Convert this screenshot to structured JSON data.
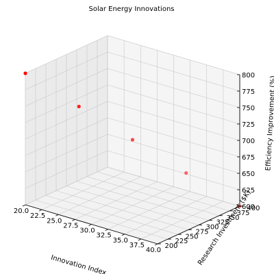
{
  "chart_data": {
    "type": "scatter",
    "title": "Solar Energy Innovations",
    "xlabel": "Innovation Index",
    "ylabel": "Research Investment ($K)",
    "zlabel": "Efficiency Improvement (%)",
    "x": [
      20,
      25,
      30,
      35,
      40
    ],
    "y": [
      200,
      250,
      300,
      350,
      400
    ],
    "z": [
      800,
      750,
      700,
      650,
      600
    ],
    "xlim": [
      20,
      40
    ],
    "ylim": [
      200,
      400
    ],
    "zlim": [
      600,
      800
    ],
    "xticks": [
      "20.0",
      "22.5",
      "25.0",
      "27.5",
      "30.0",
      "32.5",
      "35.0",
      "37.5",
      "40.0"
    ],
    "yticks": [
      "200",
      "225",
      "250",
      "275",
      "300",
      "325",
      "350",
      "375",
      "400"
    ],
    "zticks": [
      "600",
      "625",
      "650",
      "675",
      "700",
      "725",
      "750",
      "775",
      "800"
    ],
    "marker_color": "#ff0000",
    "grid": true
  }
}
